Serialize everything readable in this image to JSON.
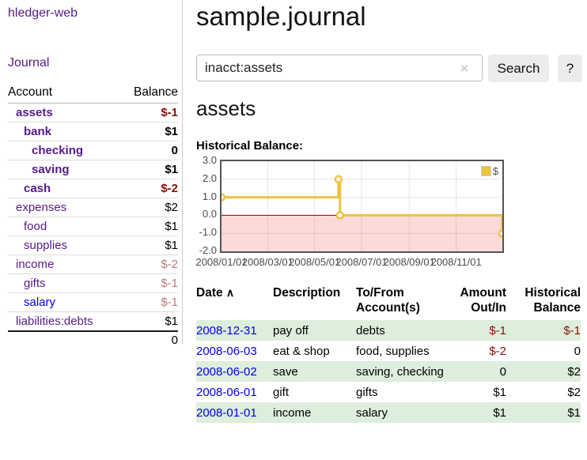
{
  "app_title": "hledger-web",
  "sidebar": {
    "journal_link": "Journal",
    "accounts": {
      "col_account": "Account",
      "col_balance": "Balance",
      "rows": [
        {
          "name": "assets",
          "balance": "$-1",
          "depth": 1,
          "bold": true,
          "bal_tone": "strong",
          "name_tone": "purple"
        },
        {
          "name": "bank",
          "balance": "$1",
          "depth": 2,
          "bold": true,
          "bal_tone": "none",
          "name_tone": "purple"
        },
        {
          "name": "checking",
          "balance": "0",
          "depth": 3,
          "bold": true,
          "bal_tone": "none",
          "name_tone": "purple"
        },
        {
          "name": "saving",
          "balance": "$1",
          "depth": 3,
          "bold": true,
          "bal_tone": "none",
          "name_tone": "purple"
        },
        {
          "name": "cash",
          "balance": "$-2",
          "depth": 2,
          "bold": true,
          "bal_tone": "strong",
          "name_tone": "purple"
        },
        {
          "name": "expenses",
          "balance": "$2",
          "depth": 1,
          "bold": false,
          "bal_tone": "none",
          "name_tone": "purple"
        },
        {
          "name": "food",
          "balance": "$1",
          "depth": 2,
          "bold": false,
          "bal_tone": "none",
          "name_tone": "purple"
        },
        {
          "name": "supplies",
          "balance": "$1",
          "depth": 2,
          "bold": false,
          "bal_tone": "none",
          "name_tone": "purple"
        },
        {
          "name": "income",
          "balance": "$-2",
          "depth": 1,
          "bold": false,
          "bal_tone": "soft",
          "name_tone": "purple"
        },
        {
          "name": "gifts",
          "balance": "$-1",
          "depth": 2,
          "bold": false,
          "bal_tone": "soft",
          "name_tone": "purple"
        },
        {
          "name": "salary",
          "balance": "$-1",
          "depth": 2,
          "bold": false,
          "bal_tone": "soft",
          "name_tone": "blue"
        },
        {
          "name": "liabilities:debts",
          "balance": "$1",
          "depth": 1,
          "bold": false,
          "bal_tone": "none",
          "name_tone": "purple"
        }
      ],
      "total": "0"
    }
  },
  "main": {
    "page_title": "sample.journal",
    "search": {
      "value": "inacct:assets",
      "clear_icon": "×",
      "search_button": "Search",
      "help_button": "?"
    },
    "account_heading": "assets",
    "chart_label": "Historical Balance:"
  },
  "chart_data": {
    "type": "line",
    "step": true,
    "title": "Historical Balance:",
    "legend": "$",
    "legend_position": "top-right",
    "series": [
      {
        "name": "$",
        "color": "#edc240",
        "points": [
          {
            "x": "2008-01-01",
            "y": 1
          },
          {
            "x": "2008-06-01",
            "y": 2
          },
          {
            "x": "2008-06-03",
            "y": 0
          },
          {
            "x": "2008-12-31",
            "y": -1
          }
        ]
      }
    ],
    "x_range": [
      "2008-01-01",
      "2008-12-31"
    ],
    "ylim": [
      -2,
      3
    ],
    "yticks": [
      "3.0",
      "2.0",
      "1.0",
      "0.0",
      "-1.0",
      "-2.0"
    ],
    "xticks": [
      {
        "label": "2008/01/01",
        "date": "2008-01-01"
      },
      {
        "label": "2008/03/01",
        "date": "2008-03-01"
      },
      {
        "label": "2008/05/01",
        "date": "2008-05-01"
      },
      {
        "label": "2008/07/01",
        "date": "2008-07-01"
      },
      {
        "label": "2008/09/01",
        "date": "2008-09-01"
      },
      {
        "label": "2008/11/01",
        "date": "2008-11-01"
      }
    ],
    "grid": true,
    "negative_fill": "#fcdada",
    "zero_line_color": "#8b0000",
    "border_color": "#545454"
  },
  "register": {
    "headers": {
      "date": "Date",
      "sort_icon": "∧",
      "description": "Description",
      "tofrom": "To/From Account(s)",
      "amount": "Amount Out/In",
      "balance": "Historical Balance"
    },
    "rows": [
      {
        "date": "2008-12-31",
        "description": "pay off",
        "accounts": "debts",
        "amount": "$-1",
        "amount_neg": true,
        "balance": "$-1",
        "balance_neg": true,
        "shaded": true
      },
      {
        "date": "2008-06-03",
        "description": "eat & shop",
        "accounts": "food, supplies",
        "amount": "$-2",
        "amount_neg": true,
        "balance": "0",
        "balance_neg": false,
        "shaded": false
      },
      {
        "date": "2008-06-02",
        "description": "save",
        "accounts": "saving, checking",
        "amount": "0",
        "amount_neg": false,
        "balance": "$2",
        "balance_neg": false,
        "shaded": true
      },
      {
        "date": "2008-06-01",
        "description": "gift",
        "accounts": "gifts",
        "amount": "$1",
        "amount_neg": false,
        "balance": "$2",
        "balance_neg": false,
        "shaded": false
      },
      {
        "date": "2008-01-01",
        "description": "income",
        "accounts": "salary",
        "amount": "$1",
        "amount_neg": false,
        "balance": "$1",
        "balance_neg": false,
        "shaded": true
      }
    ]
  },
  "colors": {
    "link_purple": "#551a8b",
    "link_blue": "#0000e0",
    "negative_strong": "#8b0e04",
    "negative_soft": "#c17878",
    "row_shaded": "#ddeedd",
    "series_gold": "#edc240",
    "chart_negative_fill": "#fcdada"
  }
}
